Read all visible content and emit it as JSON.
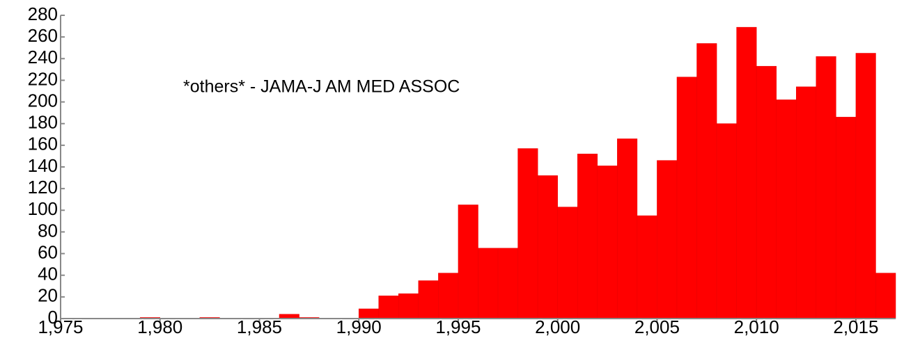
{
  "chart_data": {
    "type": "histogram",
    "title": "*others* - JAMA-J AM MED ASSOC",
    "bins": [
      1975,
      1976,
      1977,
      1978,
      1979,
      1980,
      1981,
      1982,
      1983,
      1984,
      1985,
      1986,
      1987,
      1988,
      1989,
      1990,
      1991,
      1992,
      1993,
      1994,
      1995,
      1996,
      1997,
      1998,
      1999,
      2000,
      2001,
      2002,
      2003,
      2004,
      2005,
      2006,
      2007,
      2008,
      2009,
      2010,
      2011,
      2012,
      2013,
      2014,
      2015,
      2016,
      2017
    ],
    "counts": [
      0,
      0,
      0,
      0,
      1,
      0,
      0,
      1,
      0,
      0,
      0,
      4,
      1,
      0,
      0,
      9,
      21,
      23,
      35,
      42,
      105,
      65,
      65,
      157,
      132,
      103,
      152,
      141,
      166,
      95,
      146,
      223,
      254,
      180,
      269,
      233,
      202,
      214,
      242,
      186,
      245,
      42
    ],
    "color": "#ff0000",
    "xlim": [
      1975,
      2017
    ],
    "xticks": [
      {
        "value": 1975,
        "label": "1,975"
      },
      {
        "value": 1980,
        "label": "1,980"
      },
      {
        "value": 1985,
        "label": "1,985"
      },
      {
        "value": 1990,
        "label": "1,990"
      },
      {
        "value": 1995,
        "label": "1,995"
      },
      {
        "value": 2000,
        "label": "2,000"
      },
      {
        "value": 2005,
        "label": "2,005"
      },
      {
        "value": 2010,
        "label": "2,010"
      },
      {
        "value": 2015,
        "label": "2,015"
      }
    ],
    "ylim": [
      0,
      280
    ],
    "yticks": [
      0,
      20,
      40,
      60,
      80,
      100,
      120,
      140,
      160,
      180,
      200,
      220,
      240,
      260,
      280
    ]
  }
}
